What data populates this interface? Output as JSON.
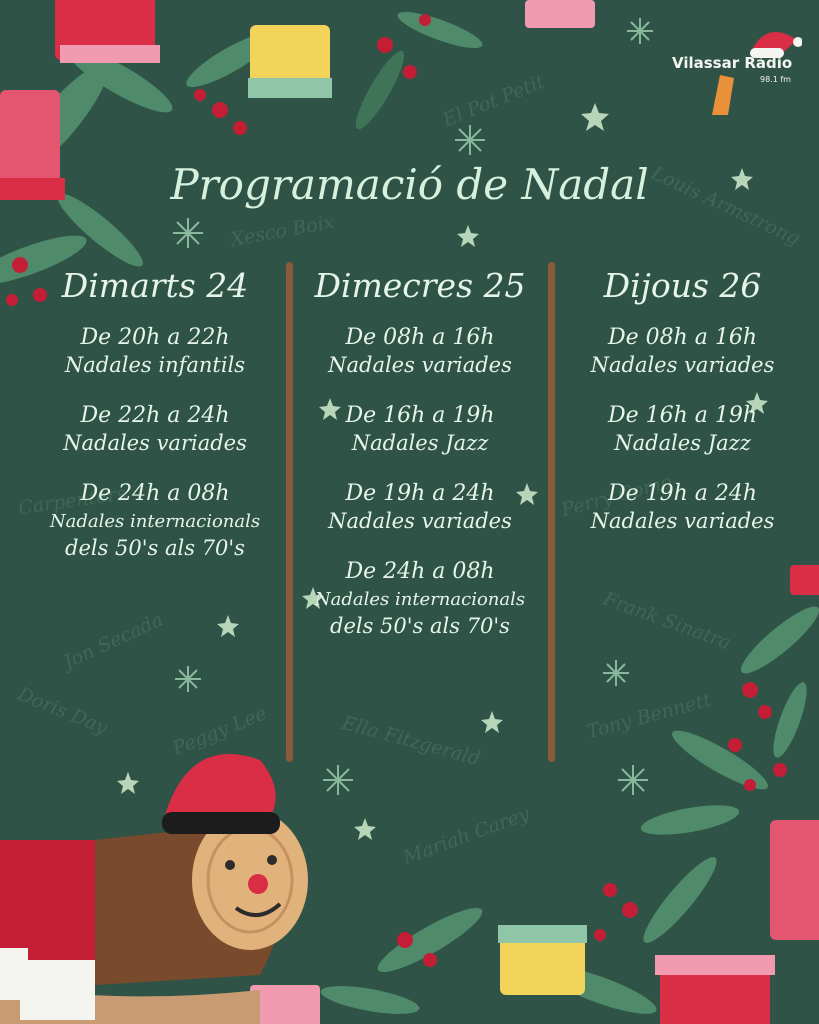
{
  "title": "Programació de Nadal",
  "logo": {
    "name": "Vilassar Ràdio",
    "frequency": "98.1 fm"
  },
  "background_names": [
    "El Pot Petit",
    "Louis Armstrong",
    "Xesco Boix",
    "Carpenters",
    "Perry Como",
    "Frank Sinatra",
    "Jon Secada",
    "Doris Day",
    "Peggy Lee",
    "Tony Bennett",
    "Ella Fitzgerald",
    "Mariah Carey"
  ],
  "days": [
    {
      "name": "Dimarts 24",
      "slots": [
        {
          "time": "De 20h a 22h",
          "program": "Nadales infantils"
        },
        {
          "time": "De 22h a 24h",
          "program": "Nadales variades"
        },
        {
          "time": "De 24h a 08h",
          "program": "Nadales internacionals",
          "program2": "dels 50's als 70's"
        }
      ]
    },
    {
      "name": "Dimecres 25",
      "slots": [
        {
          "time": "De 08h a 16h",
          "program": "Nadales variades"
        },
        {
          "time": "De 16h a 19h",
          "program": "Nadales Jazz"
        },
        {
          "time": "De 19h a 24h",
          "program": "Nadales variades"
        },
        {
          "time": "De 24h a 08h",
          "program": "Nadales internacionals",
          "program2": "dels 50's als 70's"
        }
      ]
    },
    {
      "name": "Dijous 26",
      "slots": [
        {
          "time": "De 08h a 16h",
          "program": "Nadales variades"
        },
        {
          "time": "De 16h a 19h",
          "program": "Nadales Jazz"
        },
        {
          "time": "De 19h a 24h",
          "program": "Nadales variades"
        }
      ]
    }
  ],
  "colors": {
    "background": "#2f5346",
    "text": "#e6f5e9",
    "divider": "#8a5a3a",
    "gift_red": "#d92e45",
    "leaf_green": "#4f8a6a",
    "berry": "#c41e36"
  }
}
